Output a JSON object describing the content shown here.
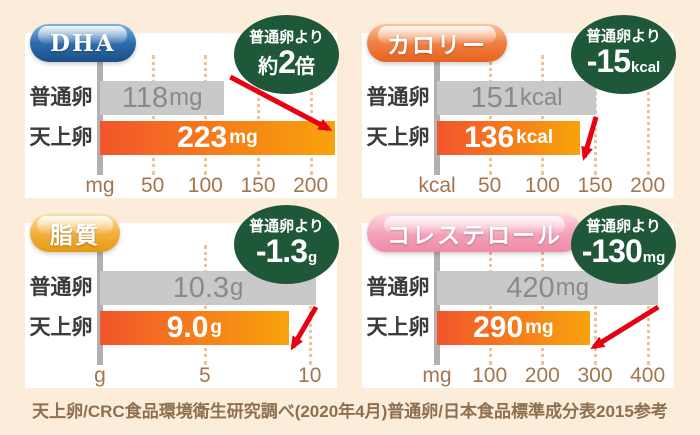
{
  "page": {
    "footer": "天上卵/CRC食品環境衛生研究調べ(2020年4月)普通卵/日本食品標準成分表2015参考"
  },
  "colors": {
    "page_bg": "#fcecda",
    "panel_bg": "#ffffff",
    "normal_bar": "#c9c9c9",
    "normal_value_text": "#8a8a8a",
    "tenjo_left": "#f2552c",
    "tenjo_right": "#f8a30b",
    "badge_bg": "#1e5838",
    "arrow": "#e60012",
    "axis_line": "#b1b1b1",
    "gridline": "#f2c193",
    "tick_text": "#a5764e",
    "category_text": "#3b3b3b",
    "footer_text": "#8e6f4f"
  },
  "chart_data": [
    {
      "type": "bar",
      "title": "DHA",
      "title_colors": [
        "#7fb0de",
        "#2d6dad",
        "#1b4f87"
      ],
      "badge": {
        "top": "普通卵より",
        "pre": "約",
        "big": "2",
        "post": "倍",
        "post_style": "kanji"
      },
      "categories": [
        "普通卵",
        "天上卵"
      ],
      "values": [
        118,
        223
      ],
      "bar_labels": [
        {
          "num": "118",
          "unit": "mg"
        },
        {
          "num": "223",
          "unit": "mg"
        }
      ],
      "axis": {
        "unit_label": "mg",
        "ticks": [
          50,
          100,
          150,
          200
        ],
        "xlim": [
          0,
          225
        ]
      }
    },
    {
      "type": "bar",
      "title": "カロリー",
      "title_colors": [
        "#fcc49b",
        "#f08044",
        "#e8631f"
      ],
      "badge": {
        "top": "普通卵より",
        "pre": "",
        "big": "-15",
        "post": "kcal",
        "post_style": "unit"
      },
      "categories": [
        "普通卵",
        "天上卵"
      ],
      "values": [
        151,
        136
      ],
      "bar_labels": [
        {
          "num": "151",
          "unit": "kcal"
        },
        {
          "num": "136",
          "unit": "kcal"
        }
      ],
      "axis": {
        "unit_label": "kcal",
        "ticks": [
          50,
          100,
          150,
          200
        ],
        "xlim": [
          0,
          225
        ]
      }
    },
    {
      "type": "bar",
      "title": "脂質",
      "title_colors": [
        "#fce0a0",
        "#f2b03c",
        "#e79a15"
      ],
      "badge": {
        "top": "普通卵より",
        "pre": "",
        "big": "-1.3",
        "post": "g",
        "post_style": "unit"
      },
      "categories": [
        "普通卵",
        "天上卵"
      ],
      "values": [
        10.3,
        9.0
      ],
      "bar_labels": [
        {
          "num": "10.3",
          "unit": "g"
        },
        {
          "num": "9.0",
          "unit": "g"
        }
      ],
      "axis": {
        "unit_label": "g",
        "ticks": [
          5,
          10
        ],
        "xlim": [
          0,
          11.3
        ]
      }
    },
    {
      "type": "bar",
      "title": "コレステロール",
      "title_colors": [
        "#fdd9e2",
        "#f5a3bb",
        "#ef8aa8"
      ],
      "badge": {
        "top": "普通卵より",
        "pre": "",
        "big": "-130",
        "post": "mg",
        "post_style": "unit"
      },
      "categories": [
        "普通卵",
        "天上卵"
      ],
      "values": [
        420,
        290
      ],
      "bar_labels": [
        {
          "num": "420",
          "unit": "mg"
        },
        {
          "num": "290",
          "unit": "mg"
        }
      ],
      "axis": {
        "unit_label": "mg",
        "ticks": [
          100,
          200,
          300,
          400
        ],
        "xlim": [
          0,
          450
        ]
      }
    }
  ]
}
